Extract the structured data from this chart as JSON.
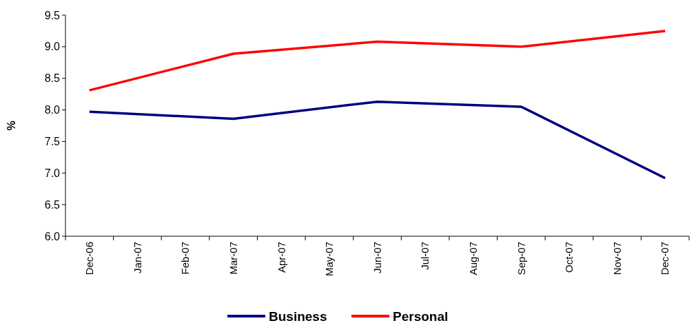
{
  "chart_data": {
    "type": "line",
    "ylabel": "%",
    "categories": [
      "Dec-06",
      "Jan-07",
      "Feb-07",
      "Mar-07",
      "Apr-07",
      "May-07",
      "Jun-07",
      "Jul-07",
      "Aug-07",
      "Sep-07",
      "Oct-07",
      "Nov-07",
      "Dec-07"
    ],
    "series": [
      {
        "name": "Business",
        "color": "#000080",
        "values": [
          7.97,
          null,
          null,
          7.86,
          null,
          null,
          8.13,
          null,
          null,
          8.05,
          null,
          null,
          6.92
        ]
      },
      {
        "name": "Personal",
        "color": "#ff0000",
        "values": [
          8.31,
          null,
          null,
          8.89,
          null,
          null,
          9.08,
          null,
          null,
          9.0,
          null,
          null,
          9.25
        ]
      }
    ],
    "ylim": [
      6,
      9.5
    ],
    "yticks": [
      {
        "value": 6,
        "label": "6.0"
      },
      {
        "value": 6.5,
        "label": "6.5"
      },
      {
        "value": 7,
        "label": "7.0"
      },
      {
        "value": 7.5,
        "label": "7.5"
      },
      {
        "value": 8,
        "label": "8.0"
      },
      {
        "value": 8.5,
        "label": "8.5"
      },
      {
        "value": 9,
        "label": "9.0"
      },
      {
        "value": 9.5,
        "label": "9.5"
      }
    ],
    "grid": false,
    "legend": "bottom",
    "marker": "none",
    "line_style": "solid"
  }
}
